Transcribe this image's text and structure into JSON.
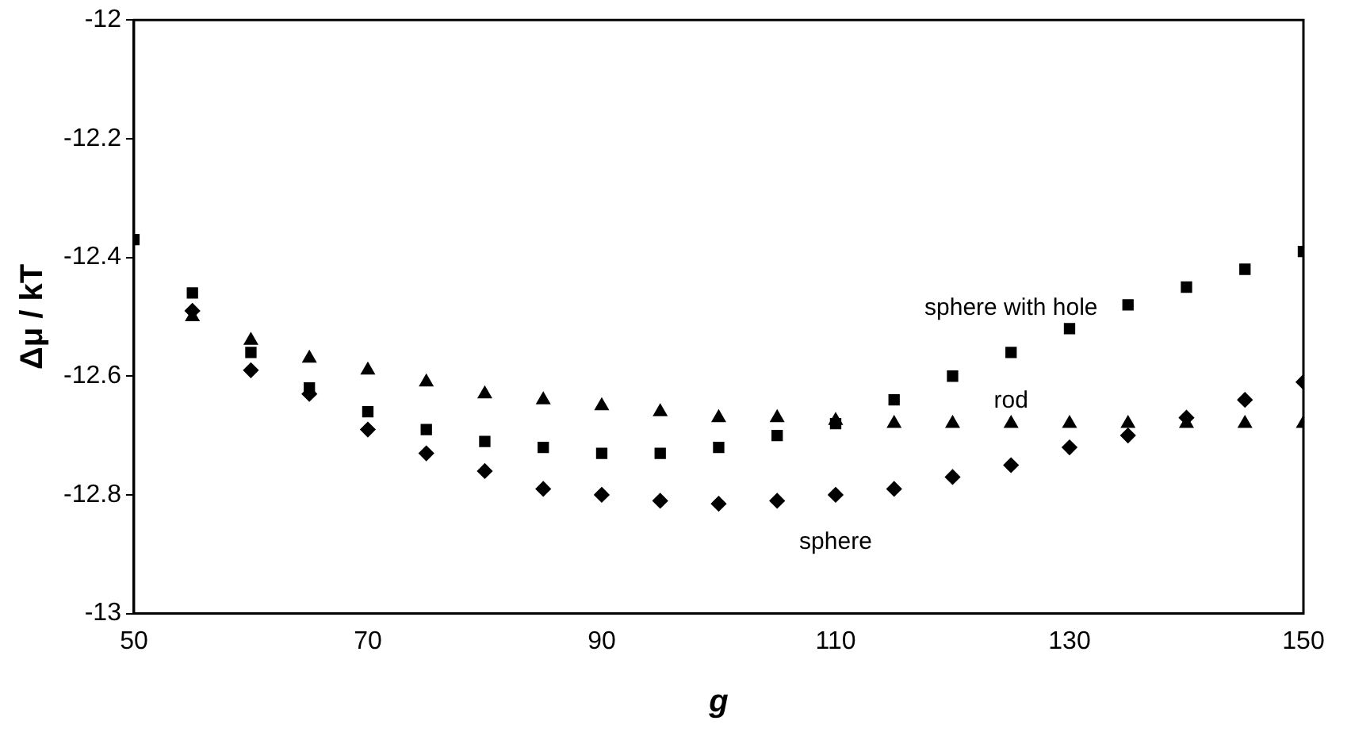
{
  "chart_data": {
    "type": "scatter",
    "xlabel": "g",
    "ylabel": "Δμ / kT",
    "xlim": [
      50,
      150
    ],
    "xticks": [
      50,
      70,
      90,
      110,
      130,
      150
    ],
    "ylim": [
      -13,
      -12
    ],
    "yticks": [
      -13,
      -12.8,
      -12.6,
      -12.4,
      -12.2,
      -12
    ],
    "grid": false,
    "legend": false,
    "series": [
      {
        "name": "sphere with hole",
        "color": "#000000",
        "marker": "square",
        "x": [
          50,
          55,
          60,
          65,
          70,
          75,
          80,
          85,
          90,
          95,
          100,
          105,
          110,
          115,
          120,
          125,
          130,
          135,
          140,
          145,
          150
        ],
        "values": [
          -12.37,
          -12.46,
          -12.56,
          -12.62,
          -12.66,
          -12.69,
          -12.71,
          -12.72,
          -12.73,
          -12.73,
          -12.72,
          -12.7,
          -12.68,
          -12.64,
          -12.6,
          -12.56,
          -12.52,
          -12.48,
          -12.45,
          -12.42,
          -12.39
        ]
      },
      {
        "name": "rod",
        "color": "#000000",
        "marker": "triangle",
        "x": [
          55,
          60,
          65,
          70,
          75,
          80,
          85,
          90,
          95,
          100,
          105,
          110,
          115,
          120,
          125,
          130,
          135,
          140,
          145,
          150
        ],
        "values": [
          -12.5,
          -12.54,
          -12.57,
          -12.59,
          -12.61,
          -12.63,
          -12.64,
          -12.65,
          -12.66,
          -12.67,
          -12.67,
          -12.675,
          -12.68,
          -12.68,
          -12.68,
          -12.68,
          -12.68,
          -12.68,
          -12.68,
          -12.68
        ]
      },
      {
        "name": "sphere",
        "color": "#000000",
        "marker": "diamond",
        "x": [
          55,
          60,
          65,
          70,
          75,
          80,
          85,
          90,
          95,
          100,
          105,
          110,
          115,
          120,
          125,
          130,
          135,
          140,
          145,
          150
        ],
        "values": [
          -12.49,
          -12.59,
          -12.63,
          -12.69,
          -12.73,
          -12.76,
          -12.79,
          -12.8,
          -12.81,
          -12.815,
          -12.81,
          -12.8,
          -12.79,
          -12.77,
          -12.75,
          -12.72,
          -12.7,
          -12.67,
          -12.64,
          -12.61
        ]
      }
    ]
  }
}
